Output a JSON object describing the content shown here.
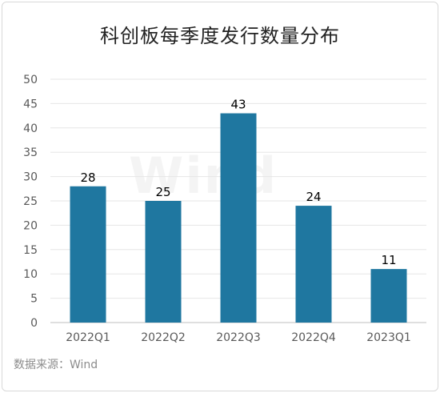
{
  "watermark": "Wind",
  "source": "数据来源：Wind",
  "chart_data": {
    "type": "bar",
    "title": "科创板每季度发行数量分布",
    "categories": [
      "2022Q1",
      "2022Q2",
      "2022Q3",
      "2022Q4",
      "2023Q1"
    ],
    "values": [
      28,
      25,
      43,
      24,
      11
    ],
    "xlabel": "",
    "ylabel": "",
    "ylim": [
      0,
      50
    ],
    "yticks": [
      0,
      5,
      10,
      15,
      20,
      25,
      30,
      35,
      40,
      45,
      50
    ],
    "grid": true,
    "legend": "none",
    "bar_color": "#1f77a0"
  }
}
